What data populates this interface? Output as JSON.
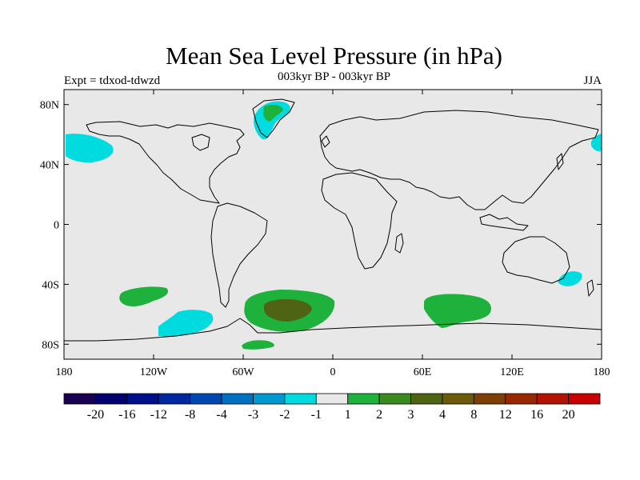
{
  "title": "Mean Sea Level Pressure (in hPa)",
  "subtitle": "003kyr BP - 003kyr BP",
  "experiment": "Expt = tdxod-tdwzd",
  "season": "JJA",
  "map": {
    "background_color": "#e8e8e8",
    "coastline_color": "#000000",
    "lat_ticks": [
      "80N",
      "40N",
      "0",
      "40S",
      "80S"
    ],
    "lon_ticks": [
      "180",
      "120W",
      "60W",
      "0",
      "60E",
      "120E",
      "180"
    ]
  },
  "anomaly_regions": [
    {
      "name": "north-pacific-negative",
      "level": "-2",
      "color": "#00dbe0"
    },
    {
      "name": "greenland-negative",
      "level": "-2",
      "color": "#00dbe0"
    },
    {
      "name": "greenland-positive",
      "level": "2",
      "color": "#1eb23c"
    },
    {
      "name": "northwest-pacific-negative",
      "level": "-2",
      "color": "#00dbe0"
    },
    {
      "name": "south-pacific-positive",
      "level": "2",
      "color": "#1eb23c"
    },
    {
      "name": "amundsen-negative",
      "level": "-2",
      "color": "#00dbe0"
    },
    {
      "name": "south-atlantic-positive",
      "level": "2",
      "color": "#1eb23c"
    },
    {
      "name": "south-atlantic-core",
      "level": "4",
      "color": "#4e6414"
    },
    {
      "name": "weddell-positive",
      "level": "2",
      "color": "#1eb23c"
    },
    {
      "name": "south-indian-positive",
      "level": "2",
      "color": "#1eb23c"
    },
    {
      "name": "tasman-negative",
      "level": "-2",
      "color": "#00dbe0"
    }
  ],
  "colorbar": {
    "colors": [
      "#1a0050",
      "#000070",
      "#00108a",
      "#0028a0",
      "#0048b0",
      "#0070c0",
      "#0098d0",
      "#00dbe0",
      "#e8e8e8",
      "#1eb23c",
      "#3a8a1e",
      "#4e6414",
      "#6a5a0a",
      "#7e3f04",
      "#982800",
      "#b21404",
      "#c80000"
    ],
    "labels": [
      "-20",
      "-16",
      "-12",
      "-8",
      "-4",
      "-3",
      "-2",
      "-1",
      "1",
      "2",
      "3",
      "4",
      "8",
      "12",
      "16",
      "20"
    ]
  }
}
